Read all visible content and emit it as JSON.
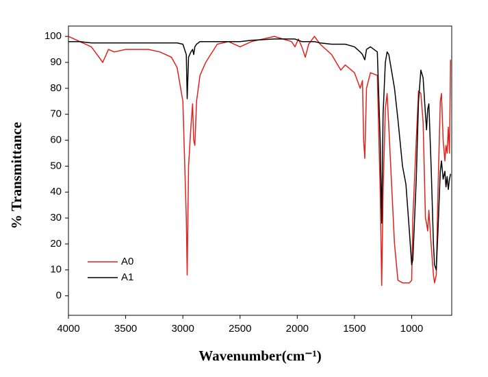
{
  "chart_data": {
    "type": "line",
    "x_label": "Wavenumber(cm⁻¹)",
    "y_label": "% Transmittance",
    "x": [
      4000,
      3900,
      3800,
      3750,
      3700,
      3650,
      3600,
      3500,
      3300,
      3200,
      3100,
      3050,
      3000,
      2970,
      2962,
      2950,
      2930,
      2915,
      2905,
      2895,
      2880,
      2850,
      2800,
      2700,
      2600,
      2500,
      2400,
      2200,
      2050,
      2020,
      1990,
      1960,
      1930,
      1900,
      1850,
      1800,
      1700,
      1620,
      1580,
      1500,
      1450,
      1430,
      1420,
      1410,
      1395,
      1360,
      1300,
      1275,
      1262,
      1250,
      1230,
      1215,
      1200,
      1150,
      1120,
      1080,
      1050,
      1020,
      1000,
      990,
      960,
      940,
      920,
      900,
      880,
      870,
      860,
      850,
      830,
      810,
      800,
      785,
      770,
      750,
      740,
      725,
      710,
      700,
      690,
      680,
      670,
      660
    ],
    "series": [
      {
        "name": "A0",
        "color": "#e0201b",
        "values": [
          100,
          98,
          96,
          93,
          90,
          95,
          94,
          95,
          95,
          94,
          92,
          88,
          75,
          30,
          8,
          50,
          65,
          74,
          60,
          58,
          75,
          85,
          90,
          97,
          98,
          96,
          98,
          100,
          98,
          96,
          99,
          96,
          92,
          97,
          100,
          97,
          93,
          87,
          89,
          86,
          80,
          83,
          60,
          53,
          80,
          86,
          85,
          40,
          4,
          40,
          72,
          78,
          65,
          20,
          6,
          5,
          5,
          5,
          6,
          30,
          60,
          79,
          78,
          67,
          30,
          28,
          25,
          33,
          20,
          8,
          5,
          8,
          40,
          75,
          78,
          60,
          52,
          58,
          55,
          65,
          55,
          91
        ]
      },
      {
        "name": "A1",
        "color": "#000000",
        "values": [
          98,
          98,
          97.5,
          97.5,
          97.5,
          97.5,
          97.5,
          97.5,
          97.5,
          97.5,
          97.5,
          97.5,
          97,
          93,
          76,
          92,
          94,
          95,
          93,
          96,
          97,
          98,
          98,
          98,
          98,
          98,
          98.5,
          99,
          99,
          99,
          98.5,
          98,
          98,
          98,
          98,
          97.5,
          97,
          97,
          97,
          96,
          94,
          93,
          92,
          91,
          95,
          96,
          94,
          60,
          28,
          70,
          90,
          94,
          93,
          80,
          68,
          50,
          43,
          25,
          12,
          14,
          45,
          75,
          87,
          84,
          70,
          64,
          72,
          74,
          50,
          20,
          12,
          10,
          25,
          48,
          52,
          45,
          48,
          42,
          46,
          41,
          45,
          47
        ]
      }
    ],
    "xlim": [
      4000,
      650
    ],
    "ylim": [
      -7.5,
      104
    ],
    "xticks": [
      4000,
      3500,
      3000,
      2500,
      2000,
      1500,
      1000
    ],
    "yticks": [
      0,
      10,
      20,
      30,
      40,
      50,
      60,
      70,
      80,
      90,
      100
    ],
    "grid": false
  }
}
